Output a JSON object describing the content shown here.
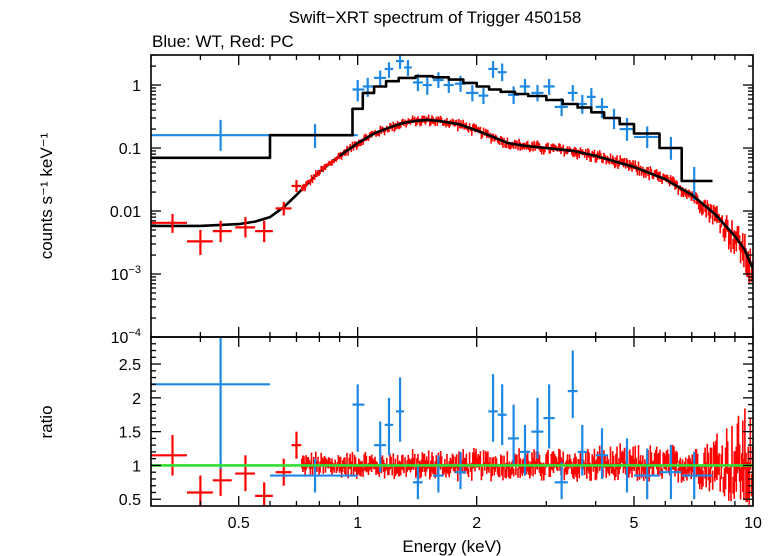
{
  "chart_data": [
    {
      "type": "scatter",
      "title": "Swift−XRT spectrum of Trigger 450158",
      "subtitle": "Blue: WT, Red: PC",
      "ylabel": "counts s⁻¹ keV⁻¹",
      "xscale": "log",
      "yscale": "log",
      "xlim": [
        0.3,
        10
      ],
      "ylim": [
        0.0001,
        3
      ],
      "x_ticks": [
        {
          "value": 0.5,
          "label": "0.5"
        },
        {
          "value": 1,
          "label": "1"
        },
        {
          "value": 2,
          "label": "2"
        },
        {
          "value": 5,
          "label": "5"
        },
        {
          "value": 10,
          "label": "10"
        }
      ],
      "y_ticks": [
        {
          "value": 1,
          "label": "1",
          "sup": ""
        },
        {
          "value": 0.1,
          "label": "0.1",
          "sup": ""
        },
        {
          "value": 0.01,
          "label": "0.01",
          "sup": ""
        },
        {
          "value": 0.001,
          "label": "10",
          "sup": "−3"
        },
        {
          "value": 0.0001,
          "label": "10",
          "sup": "−4"
        }
      ],
      "colors": {
        "wt": "#1e88e5",
        "pc": "#ff0000",
        "model": "#000000"
      },
      "series": [
        {
          "name": "WT",
          "color": "#1e88e5",
          "points": [
            {
              "x": 0.45,
              "xlo": 0.3,
              "xhi": 0.6,
              "y": 0.16,
              "ylo": 0.09,
              "yhi": 0.28
            },
            {
              "x": 0.78,
              "xlo": 0.6,
              "xhi": 1.0,
              "y": 0.16,
              "ylo": 0.1,
              "yhi": 0.24
            },
            {
              "x": 1.0,
              "xlo": 0.97,
              "xhi": 1.04,
              "y": 0.85,
              "ylo": 0.55,
              "yhi": 1.2
            },
            {
              "x": 1.06,
              "xlo": 1.03,
              "xhi": 1.1,
              "y": 0.95,
              "ylo": 0.65,
              "yhi": 1.3
            },
            {
              "x": 1.14,
              "xlo": 1.1,
              "xhi": 1.18,
              "y": 1.3,
              "ylo": 0.95,
              "yhi": 1.7
            },
            {
              "x": 1.2,
              "xlo": 1.17,
              "xhi": 1.23,
              "y": 1.8,
              "ylo": 1.3,
              "yhi": 2.3
            },
            {
              "x": 1.28,
              "xlo": 1.25,
              "xhi": 1.31,
              "y": 2.4,
              "ylo": 1.8,
              "yhi": 3.0
            },
            {
              "x": 1.34,
              "xlo": 1.31,
              "xhi": 1.37,
              "y": 1.9,
              "ylo": 1.4,
              "yhi": 2.5
            },
            {
              "x": 1.42,
              "xlo": 1.38,
              "xhi": 1.46,
              "y": 1.1,
              "ylo": 0.8,
              "yhi": 1.5
            },
            {
              "x": 1.5,
              "xlo": 1.46,
              "xhi": 1.54,
              "y": 1.0,
              "ylo": 0.7,
              "yhi": 1.4
            },
            {
              "x": 1.6,
              "xlo": 1.55,
              "xhi": 1.65,
              "y": 1.2,
              "ylo": 0.9,
              "yhi": 1.6
            },
            {
              "x": 1.7,
              "xlo": 1.65,
              "xhi": 1.75,
              "y": 1.0,
              "ylo": 0.75,
              "yhi": 1.35
            },
            {
              "x": 1.82,
              "xlo": 1.76,
              "xhi": 1.88,
              "y": 1.05,
              "ylo": 0.78,
              "yhi": 1.4
            },
            {
              "x": 1.95,
              "xlo": 1.88,
              "xhi": 2.02,
              "y": 0.75,
              "ylo": 0.55,
              "yhi": 1.0
            },
            {
              "x": 2.08,
              "xlo": 2.02,
              "xhi": 2.14,
              "y": 0.68,
              "ylo": 0.5,
              "yhi": 0.9
            },
            {
              "x": 2.2,
              "xlo": 2.14,
              "xhi": 2.26,
              "y": 1.8,
              "ylo": 1.3,
              "yhi": 2.4
            },
            {
              "x": 2.32,
              "xlo": 2.26,
              "xhi": 2.38,
              "y": 1.6,
              "ylo": 1.15,
              "yhi": 2.2
            },
            {
              "x": 2.48,
              "xlo": 2.4,
              "xhi": 2.56,
              "y": 0.7,
              "ylo": 0.5,
              "yhi": 0.95
            },
            {
              "x": 2.65,
              "xlo": 2.57,
              "xhi": 2.73,
              "y": 0.95,
              "ylo": 0.7,
              "yhi": 1.25
            },
            {
              "x": 2.85,
              "xlo": 2.75,
              "xhi": 2.95,
              "y": 0.75,
              "ylo": 0.55,
              "yhi": 1.0
            },
            {
              "x": 3.05,
              "xlo": 2.95,
              "xhi": 3.15,
              "y": 0.95,
              "ylo": 0.7,
              "yhi": 1.25
            },
            {
              "x": 3.28,
              "xlo": 3.15,
              "xhi": 3.4,
              "y": 0.45,
              "ylo": 0.32,
              "yhi": 0.62
            },
            {
              "x": 3.5,
              "xlo": 3.4,
              "xhi": 3.6,
              "y": 0.75,
              "ylo": 0.55,
              "yhi": 1.0
            },
            {
              "x": 3.7,
              "xlo": 3.6,
              "xhi": 3.8,
              "y": 0.5,
              "ylo": 0.35,
              "yhi": 0.7
            },
            {
              "x": 3.9,
              "xlo": 3.8,
              "xhi": 4.0,
              "y": 0.65,
              "ylo": 0.45,
              "yhi": 0.9
            },
            {
              "x": 4.15,
              "xlo": 4.0,
              "xhi": 4.3,
              "y": 0.45,
              "ylo": 0.3,
              "yhi": 0.62
            },
            {
              "x": 4.45,
              "xlo": 4.3,
              "xhi": 4.6,
              "y": 0.3,
              "ylo": 0.2,
              "yhi": 0.42
            },
            {
              "x": 4.8,
              "xlo": 4.6,
              "xhi": 5.0,
              "y": 0.2,
              "ylo": 0.13,
              "yhi": 0.3
            },
            {
              "x": 5.4,
              "xlo": 5.0,
              "xhi": 5.8,
              "y": 0.15,
              "ylo": 0.1,
              "yhi": 0.22
            },
            {
              "x": 6.2,
              "xlo": 5.8,
              "xhi": 6.6,
              "y": 0.1,
              "ylo": 0.065,
              "yhi": 0.15
            },
            {
              "x": 7.1,
              "xlo": 6.6,
              "xhi": 7.9,
              "y": 0.03,
              "ylo": 0.015,
              "yhi": 0.05
            }
          ]
        },
        {
          "name": "PC",
          "color": "#ff0000",
          "points": [
            {
              "x": 0.34,
              "xlo": 0.3,
              "xhi": 0.37,
              "y": 0.0065,
              "ylo": 0.0045,
              "yhi": 0.009
            },
            {
              "x": 0.4,
              "xlo": 0.37,
              "xhi": 0.43,
              "y": 0.0033,
              "ylo": 0.002,
              "yhi": 0.005
            },
            {
              "x": 0.45,
              "xlo": 0.43,
              "xhi": 0.48,
              "y": 0.0048,
              "ylo": 0.0032,
              "yhi": 0.007
            },
            {
              "x": 0.52,
              "xlo": 0.49,
              "xhi": 0.55,
              "y": 0.0055,
              "ylo": 0.0038,
              "yhi": 0.008
            },
            {
              "x": 0.58,
              "xlo": 0.55,
              "xhi": 0.61,
              "y": 0.0048,
              "ylo": 0.0032,
              "yhi": 0.007
            },
            {
              "x": 0.65,
              "xlo": 0.62,
              "xhi": 0.68,
              "y": 0.011,
              "ylo": 0.0085,
              "yhi": 0.014
            },
            {
              "x": 0.7,
              "xlo": 0.68,
              "xhi": 0.72,
              "y": 0.025,
              "ylo": 0.02,
              "yhi": 0.031
            }
          ]
        }
      ],
      "model_wt": [
        [
          0.3,
          0.07
        ],
        [
          0.6,
          0.07
        ],
        [
          0.6,
          0.16
        ],
        [
          0.97,
          0.16
        ],
        [
          0.97,
          0.42
        ],
        [
          1.03,
          0.42
        ],
        [
          1.03,
          0.75
        ],
        [
          1.1,
          0.75
        ],
        [
          1.1,
          0.95
        ],
        [
          1.18,
          0.95
        ],
        [
          1.18,
          1.15
        ],
        [
          1.27,
          1.15
        ],
        [
          1.27,
          1.3
        ],
        [
          1.4,
          1.3
        ],
        [
          1.4,
          1.38
        ],
        [
          1.55,
          1.38
        ],
        [
          1.55,
          1.33
        ],
        [
          1.7,
          1.33
        ],
        [
          1.7,
          1.22
        ],
        [
          1.85,
          1.22
        ],
        [
          1.85,
          1.08
        ],
        [
          2.0,
          1.08
        ],
        [
          2.0,
          0.95
        ],
        [
          2.15,
          0.95
        ],
        [
          2.15,
          0.85
        ],
        [
          2.3,
          0.85
        ],
        [
          2.3,
          0.78
        ],
        [
          2.5,
          0.78
        ],
        [
          2.5,
          0.72
        ],
        [
          2.7,
          0.72
        ],
        [
          2.7,
          0.67
        ],
        [
          3.0,
          0.67
        ],
        [
          3.0,
          0.58
        ],
        [
          3.3,
          0.58
        ],
        [
          3.3,
          0.5
        ],
        [
          3.6,
          0.5
        ],
        [
          3.6,
          0.44
        ],
        [
          3.9,
          0.44
        ],
        [
          3.9,
          0.37
        ],
        [
          4.2,
          0.37
        ],
        [
          4.2,
          0.3
        ],
        [
          4.6,
          0.3
        ],
        [
          4.6,
          0.24
        ],
        [
          5.0,
          0.24
        ],
        [
          5.0,
          0.17
        ],
        [
          5.8,
          0.17
        ],
        [
          5.8,
          0.1
        ],
        [
          6.6,
          0.1
        ],
        [
          6.6,
          0.03
        ],
        [
          7.9,
          0.03
        ]
      ],
      "model_pc": [
        [
          0.3,
          0.0058
        ],
        [
          0.4,
          0.0058
        ],
        [
          0.5,
          0.0062
        ],
        [
          0.55,
          0.0068
        ],
        [
          0.6,
          0.008
        ],
        [
          0.65,
          0.0115
        ],
        [
          0.7,
          0.018
        ],
        [
          0.75,
          0.028
        ],
        [
          0.8,
          0.042
        ],
        [
          0.9,
          0.075
        ],
        [
          1.0,
          0.12
        ],
        [
          1.1,
          0.17
        ],
        [
          1.2,
          0.21
        ],
        [
          1.3,
          0.25
        ],
        [
          1.4,
          0.27
        ],
        [
          1.5,
          0.28
        ],
        [
          1.6,
          0.27
        ],
        [
          1.8,
          0.24
        ],
        [
          2.0,
          0.19
        ],
        [
          2.2,
          0.15
        ],
        [
          2.4,
          0.12
        ],
        [
          2.6,
          0.11
        ],
        [
          3.0,
          0.1
        ],
        [
          3.5,
          0.09
        ],
        [
          4.0,
          0.075
        ],
        [
          5.0,
          0.05
        ],
        [
          6.0,
          0.032
        ],
        [
          7.0,
          0.018
        ],
        [
          8.0,
          0.009
        ],
        [
          9.0,
          0.004
        ],
        [
          9.5,
          0.0025
        ],
        [
          10.0,
          0.0012
        ]
      ]
    },
    {
      "type": "scatter",
      "xlabel": "Energy (keV)",
      "ylabel": "ratio",
      "xscale": "log",
      "xlim": [
        0.3,
        10
      ],
      "ylim": [
        0.4,
        2.9
      ],
      "x_ticks": [
        {
          "value": 0.5,
          "label": "0.5"
        },
        {
          "value": 1,
          "label": "1"
        },
        {
          "value": 2,
          "label": "2"
        },
        {
          "value": 5,
          "label": "5"
        },
        {
          "value": 10,
          "label": "10"
        }
      ],
      "y_ticks": [
        {
          "value": 0.5,
          "label": "0.5"
        },
        {
          "value": 1,
          "label": "1"
        },
        {
          "value": 1.5,
          "label": "1.5"
        },
        {
          "value": 2,
          "label": "2"
        },
        {
          "value": 2.5,
          "label": "2.5"
        }
      ],
      "reference_line": {
        "y": 1,
        "color": "#33dd33"
      },
      "series": [
        {
          "name": "WT",
          "color": "#1e88e5",
          "points": [
            {
              "x": 0.45,
              "xlo": 0.3,
              "xhi": 0.6,
              "y": 2.2,
              "ylo": 0.95,
              "yhi": 2.9
            },
            {
              "x": 0.78,
              "xlo": 0.6,
              "xhi": 1.0,
              "y": 0.85,
              "ylo": 0.6,
              "yhi": 1.1
            },
            {
              "x": 1.0,
              "xlo": 0.97,
              "xhi": 1.04,
              "y": 1.9,
              "ylo": 1.2,
              "yhi": 2.2
            },
            {
              "x": 1.14,
              "xlo": 1.1,
              "xhi": 1.18,
              "y": 1.3,
              "ylo": 0.9,
              "yhi": 1.65
            },
            {
              "x": 1.2,
              "xlo": 1.17,
              "xhi": 1.23,
              "y": 1.6,
              "ylo": 1.15,
              "yhi": 2.0
            },
            {
              "x": 1.28,
              "xlo": 1.25,
              "xhi": 1.31,
              "y": 1.8,
              "ylo": 1.35,
              "yhi": 2.3
            },
            {
              "x": 1.42,
              "xlo": 1.38,
              "xhi": 1.46,
              "y": 0.75,
              "ylo": 0.5,
              "yhi": 1.0
            },
            {
              "x": 1.6,
              "xlo": 1.55,
              "xhi": 1.65,
              "y": 0.85,
              "ylo": 0.6,
              "yhi": 1.15
            },
            {
              "x": 1.82,
              "xlo": 1.76,
              "xhi": 1.88,
              "y": 0.9,
              "ylo": 0.65,
              "yhi": 1.2
            },
            {
              "x": 2.2,
              "xlo": 2.14,
              "xhi": 2.26,
              "y": 1.8,
              "ylo": 1.35,
              "yhi": 2.35
            },
            {
              "x": 2.32,
              "xlo": 2.26,
              "xhi": 2.38,
              "y": 1.75,
              "ylo": 1.3,
              "yhi": 2.2
            },
            {
              "x": 2.48,
              "xlo": 2.4,
              "xhi": 2.56,
              "y": 1.4,
              "ylo": 1.0,
              "yhi": 1.9
            },
            {
              "x": 2.65,
              "xlo": 2.57,
              "xhi": 2.73,
              "y": 1.2,
              "ylo": 0.85,
              "yhi": 1.6
            },
            {
              "x": 2.85,
              "xlo": 2.75,
              "xhi": 2.95,
              "y": 1.5,
              "ylo": 1.1,
              "yhi": 2.0
            },
            {
              "x": 3.05,
              "xlo": 2.95,
              "xhi": 3.15,
              "y": 1.7,
              "ylo": 1.25,
              "yhi": 2.2
            },
            {
              "x": 3.28,
              "xlo": 3.15,
              "xhi": 3.4,
              "y": 0.75,
              "ylo": 0.5,
              "yhi": 1.05
            },
            {
              "x": 3.5,
              "xlo": 3.4,
              "xhi": 3.6,
              "y": 2.1,
              "ylo": 1.7,
              "yhi": 2.7
            },
            {
              "x": 3.7,
              "xlo": 3.6,
              "xhi": 3.8,
              "y": 1.2,
              "ylo": 0.85,
              "yhi": 1.6
            },
            {
              "x": 4.15,
              "xlo": 4.0,
              "xhi": 4.3,
              "y": 1.15,
              "ylo": 0.8,
              "yhi": 1.55
            },
            {
              "x": 4.8,
              "xlo": 4.6,
              "xhi": 5.0,
              "y": 1.0,
              "ylo": 0.6,
              "yhi": 1.4
            },
            {
              "x": 5.4,
              "xlo": 5.0,
              "xhi": 5.8,
              "y": 0.85,
              "ylo": 0.5,
              "yhi": 1.25
            },
            {
              "x": 6.2,
              "xlo": 5.8,
              "xhi": 6.6,
              "y": 0.9,
              "ylo": 0.5,
              "yhi": 1.3
            },
            {
              "x": 7.1,
              "xlo": 6.6,
              "xhi": 7.9,
              "y": 0.85,
              "ylo": 0.5,
              "yhi": 1.2
            }
          ]
        },
        {
          "name": "PC",
          "color": "#ff0000",
          "points": [
            {
              "x": 0.34,
              "xlo": 0.3,
              "xhi": 0.37,
              "y": 1.15,
              "ylo": 0.85,
              "yhi": 1.45
            },
            {
              "x": 0.4,
              "xlo": 0.37,
              "xhi": 0.43,
              "y": 0.6,
              "ylo": 0.4,
              "yhi": 0.85
            },
            {
              "x": 0.45,
              "xlo": 0.43,
              "xhi": 0.48,
              "y": 0.78,
              "ylo": 0.55,
              "yhi": 1.05
            },
            {
              "x": 0.52,
              "xlo": 0.49,
              "xhi": 0.55,
              "y": 0.88,
              "ylo": 0.62,
              "yhi": 1.15
            },
            {
              "x": 0.58,
              "xlo": 0.55,
              "xhi": 0.61,
              "y": 0.55,
              "ylo": 0.38,
              "yhi": 0.75
            },
            {
              "x": 0.65,
              "xlo": 0.62,
              "xhi": 0.68,
              "y": 0.9,
              "ylo": 0.7,
              "yhi": 1.1
            },
            {
              "x": 0.7,
              "xlo": 0.68,
              "xhi": 0.72,
              "y": 1.3,
              "ylo": 1.1,
              "yhi": 1.5
            }
          ]
        }
      ]
    }
  ]
}
